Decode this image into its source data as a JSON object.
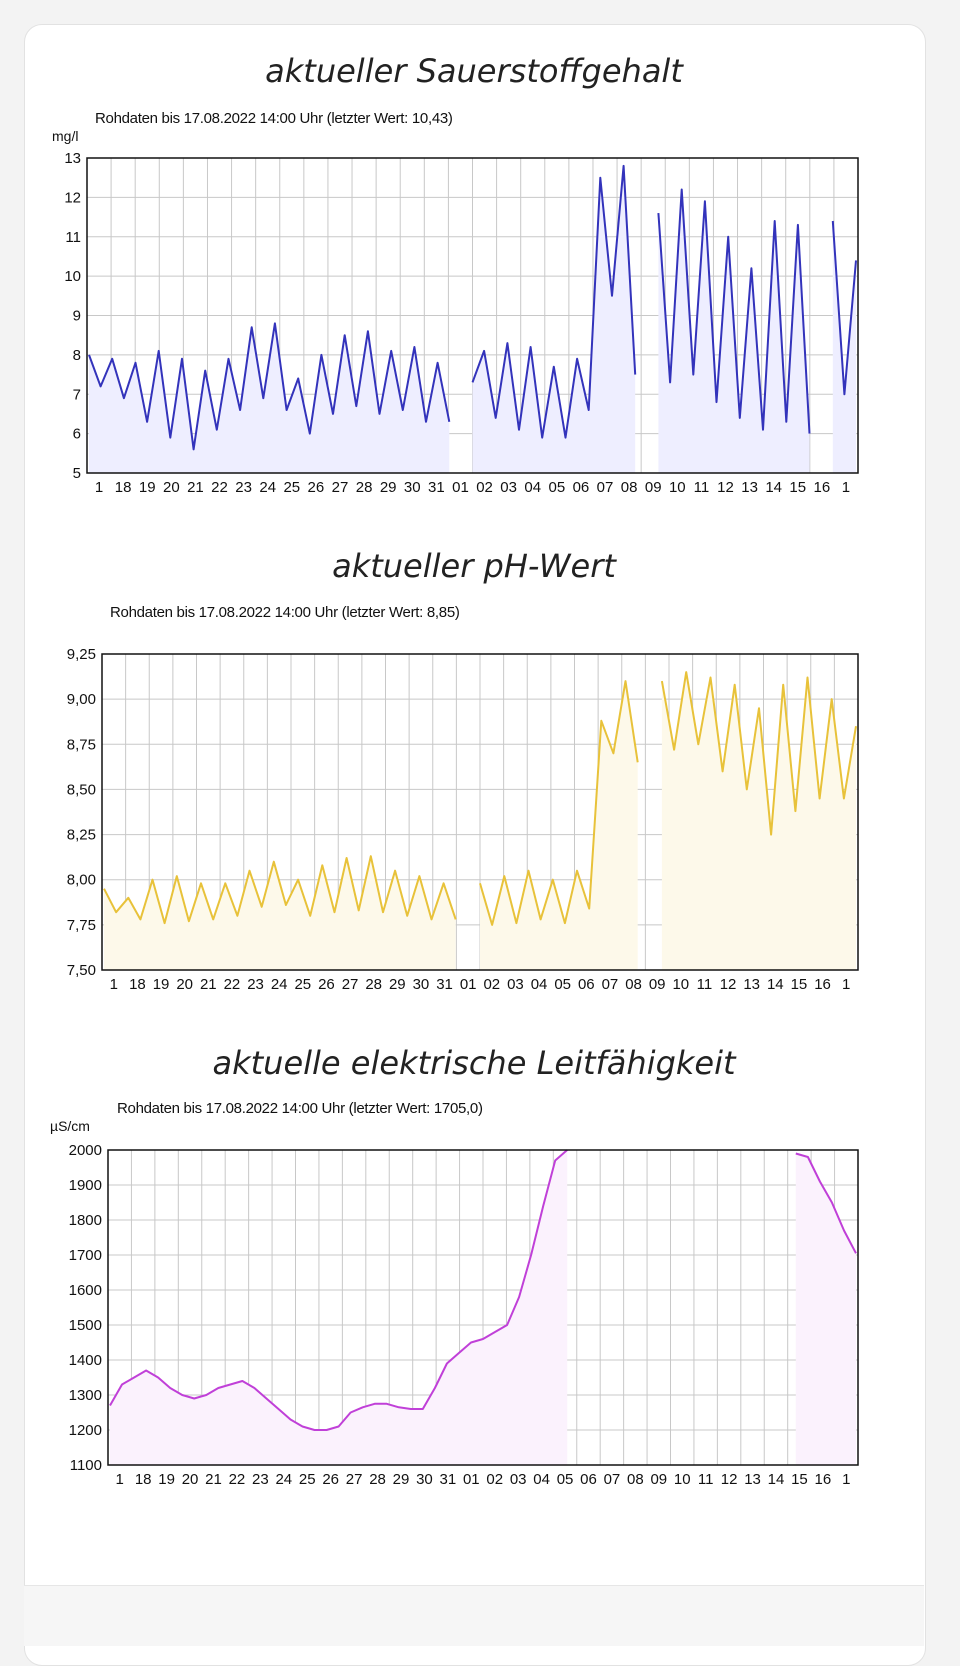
{
  "chart_data": [
    {
      "type": "line",
      "title": "aktueller Sauerstoffgehalt",
      "subtitle": "Rohdaten bis 17.08.2022 14:00 Uhr (letzter Wert: 10,43)",
      "ylabel": "mg/l",
      "ylim": [
        5,
        13
      ],
      "yticks": [
        "5",
        "6",
        "7",
        "8",
        "9",
        "10",
        "11",
        "12",
        "13"
      ],
      "xticks": [
        "1",
        "18",
        "19",
        "20",
        "21",
        "22",
        "23",
        "24",
        "25",
        "26",
        "27",
        "28",
        "29",
        "30",
        "31",
        "01",
        "02",
        "03",
        "04",
        "05",
        "06",
        "07",
        "08",
        "09",
        "10",
        "11",
        "12",
        "13",
        "14",
        "15",
        "16",
        "1"
      ],
      "grid": true,
      "color": "#3333bb",
      "fill": "#eeeeff",
      "series": [
        {
          "values": [
            8.0,
            7.2,
            7.9,
            6.9,
            7.8,
            6.3,
            8.1,
            5.9,
            7.9,
            5.6,
            7.6,
            6.1,
            7.9,
            6.6,
            8.7,
            6.9,
            8.8,
            6.6,
            7.4,
            6.0,
            8.0,
            6.5,
            8.5,
            6.7,
            8.6,
            6.5,
            8.1,
            6.6,
            8.2,
            6.3,
            7.8,
            6.3,
            null,
            7.3,
            8.1,
            6.4,
            8.3,
            6.1,
            8.2,
            5.9,
            7.7,
            5.9,
            7.9,
            6.6,
            12.5,
            9.5,
            12.8,
            7.5,
            null,
            11.6,
            7.3,
            12.2,
            7.5,
            11.9,
            6.8,
            11.0,
            6.4,
            10.2,
            6.1,
            11.4,
            6.3,
            11.3,
            6.0,
            null,
            11.4,
            7.0,
            10.4
          ]
        }
      ]
    },
    {
      "type": "line",
      "title": "aktueller pH-Wert",
      "subtitle": "Rohdaten bis 17.08.2022 14:00 Uhr (letzter Wert: 8,85)",
      "ylabel": "",
      "ylim": [
        7.5,
        9.25
      ],
      "yticks": [
        "7,50",
        "7,75",
        "8,00",
        "8,25",
        "8,50",
        "8,75",
        "9,00",
        "9,25"
      ],
      "xticks": [
        "1",
        "18",
        "19",
        "20",
        "21",
        "22",
        "23",
        "24",
        "25",
        "26",
        "27",
        "28",
        "29",
        "30",
        "31",
        "01",
        "02",
        "03",
        "04",
        "05",
        "06",
        "07",
        "08",
        "09",
        "10",
        "11",
        "12",
        "13",
        "14",
        "15",
        "16",
        "1"
      ],
      "grid": true,
      "color": "#e8c23a",
      "fill": "#fdf9ea",
      "series": [
        {
          "values": [
            7.95,
            7.82,
            7.9,
            7.78,
            8.0,
            7.76,
            8.02,
            7.77,
            7.98,
            7.78,
            7.98,
            7.8,
            8.05,
            7.85,
            8.1,
            7.86,
            8.0,
            7.8,
            8.08,
            7.82,
            8.12,
            7.83,
            8.13,
            7.82,
            8.05,
            7.8,
            8.02,
            7.78,
            7.98,
            7.78,
            null,
            7.98,
            7.75,
            8.02,
            7.76,
            8.05,
            7.78,
            8.0,
            7.76,
            8.05,
            7.84,
            8.88,
            8.7,
            9.1,
            8.65,
            null,
            9.1,
            8.72,
            9.15,
            8.75,
            9.12,
            8.6,
            9.08,
            8.5,
            8.95,
            8.25,
            9.08,
            8.38,
            9.12,
            8.45,
            9.0,
            8.45,
            8.85
          ]
        }
      ]
    },
    {
      "type": "line",
      "title": "aktuelle elektrische Leitfähigkeit",
      "subtitle": "Rohdaten bis 17.08.2022 14:00 Uhr (letzter Wert: 1705,0)",
      "ylabel": "µS/cm",
      "ylim": [
        1100,
        2000
      ],
      "yticks": [
        "1100",
        "1200",
        "1300",
        "1400",
        "1500",
        "1600",
        "1700",
        "1800",
        "1900",
        "2000"
      ],
      "xticks": [
        "1",
        "18",
        "19",
        "20",
        "21",
        "22",
        "23",
        "24",
        "25",
        "26",
        "27",
        "28",
        "29",
        "30",
        "31",
        "01",
        "02",
        "03",
        "04",
        "05",
        "06",
        "07",
        "08",
        "09",
        "10",
        "11",
        "12",
        "13",
        "14",
        "15",
        "16",
        "1"
      ],
      "grid": true,
      "color": "#c040d8",
      "fill": "#fbf2fd",
      "series": [
        {
          "values": [
            1270,
            1330,
            1350,
            1370,
            1350,
            1320,
            1300,
            1290,
            1300,
            1320,
            1330,
            1340,
            1320,
            1290,
            1260,
            1230,
            1210,
            1200,
            1200,
            1210,
            1250,
            1265,
            1275,
            1275,
            1265,
            1260,
            1260,
            1320,
            1390,
            1420,
            1450,
            1460,
            1480,
            1500,
            1580,
            1700,
            1840,
            1970,
            2000,
            null,
            null,
            null,
            null,
            null,
            null,
            null,
            null,
            null,
            null,
            null,
            null,
            null,
            null,
            null,
            null,
            1965,
            null,
            1990,
            1980,
            1910,
            1850,
            1770,
            1705
          ]
        }
      ]
    }
  ]
}
